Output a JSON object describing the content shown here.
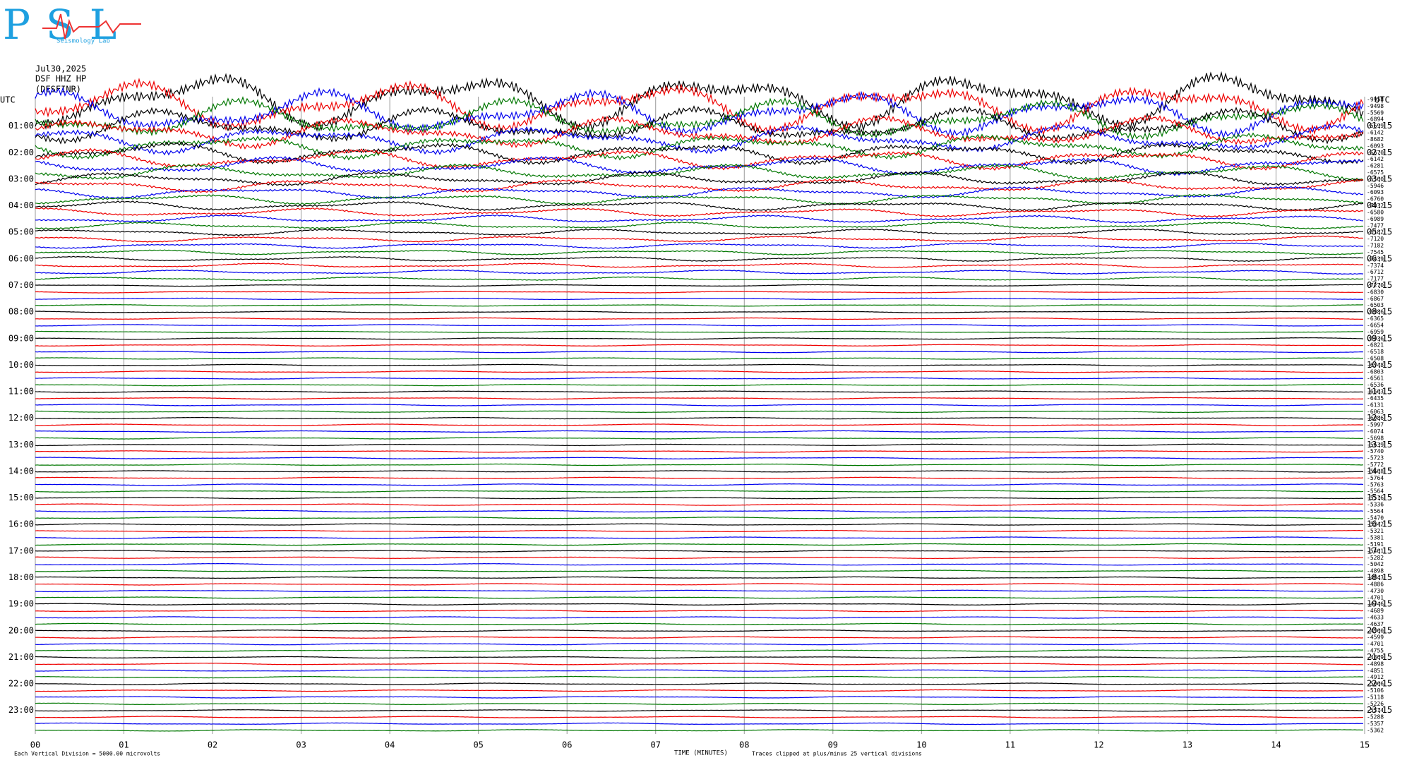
{
  "header": {
    "logo": "PSL",
    "logo_sub": "Seismology Lab",
    "date": "Jul30,2025",
    "station": "DSF HHZ HP",
    "network": "(DESFINR)",
    "left_utc": "UTC",
    "right_utc": "UTC"
  },
  "left_labels": [
    "01:00",
    "02:00",
    "03:00",
    "04:00",
    "05:00",
    "06:00",
    "07:00",
    "08:00",
    "09:00",
    "10:00",
    "11:00",
    "12:00",
    "13:00",
    "14:00",
    "15:00",
    "16:00",
    "17:00",
    "18:00",
    "19:00",
    "20:00",
    "21:00",
    "22:00",
    "23:00"
  ],
  "right_labels": [
    "01:15",
    "02:15",
    "03:15",
    "04:15",
    "05:15",
    "06:15",
    "07:15",
    "08:15",
    "09:15",
    "10:15",
    "11:15",
    "12:15",
    "13:15",
    "14:15",
    "15:15",
    "16:15",
    "17:15",
    "18:15",
    "19:15",
    "20:15",
    "21:15",
    "22:15",
    "23:15"
  ],
  "offsets": [
    "-9958",
    "-9498",
    "-5569",
    "-6894",
    "-5699",
    "-6142",
    "-8682",
    "-6093",
    "-6670",
    "-6142",
    "-6281",
    "-6575",
    "-5560",
    "-5946",
    "-6093",
    "-6760",
    "-7032",
    "-6580",
    "-6989",
    "-7477",
    "-6182",
    "-7120",
    "-7182",
    "-7545",
    "-7439",
    "-7374",
    "-6712",
    "-7177",
    "-7270",
    "-6830",
    "-6867",
    "-6503",
    "-6986",
    "-6365",
    "-6654",
    "-6959",
    "-6936",
    "-6821",
    "-6518",
    "-6508",
    "-6748",
    "-6803",
    "-6561",
    "-6536",
    "-6563",
    "-6435",
    "-6131",
    "-6063",
    "-6086",
    "-5997",
    "-6074",
    "-5698",
    "-5639",
    "-5740",
    "-5723",
    "-5772",
    "-5668",
    "-5764",
    "-5763",
    "-5564",
    "-5516",
    "-5336",
    "-5564",
    "-5470",
    "-5242",
    "-5321",
    "-5381",
    "-5191",
    "-5461",
    "-5282",
    "-5042",
    "-4898",
    "-4843",
    "-4886",
    "-4730",
    "-4701",
    "-4746",
    "-4689",
    "-4633",
    "-4637",
    "-4560",
    "-4599",
    "-4701",
    "-4755",
    "-4869",
    "-4898",
    "-4851",
    "-4912",
    "-5066",
    "-5106",
    "-5118",
    "-5226",
    "-5314",
    "-5288",
    "-5357",
    "-5362"
  ],
  "minutes": [
    "00",
    "01",
    "02",
    "03",
    "04",
    "05",
    "06",
    "07",
    "08",
    "09",
    "10",
    "11",
    "12",
    "13",
    "14",
    "15"
  ],
  "footer": {
    "scale": "Each Vertical Division = 5000.00 microvolts",
    "axis_title": "TIME (MINUTES)",
    "clip_note": "Traces clipped at plus/minus 25 vertical divisions"
  }
}
